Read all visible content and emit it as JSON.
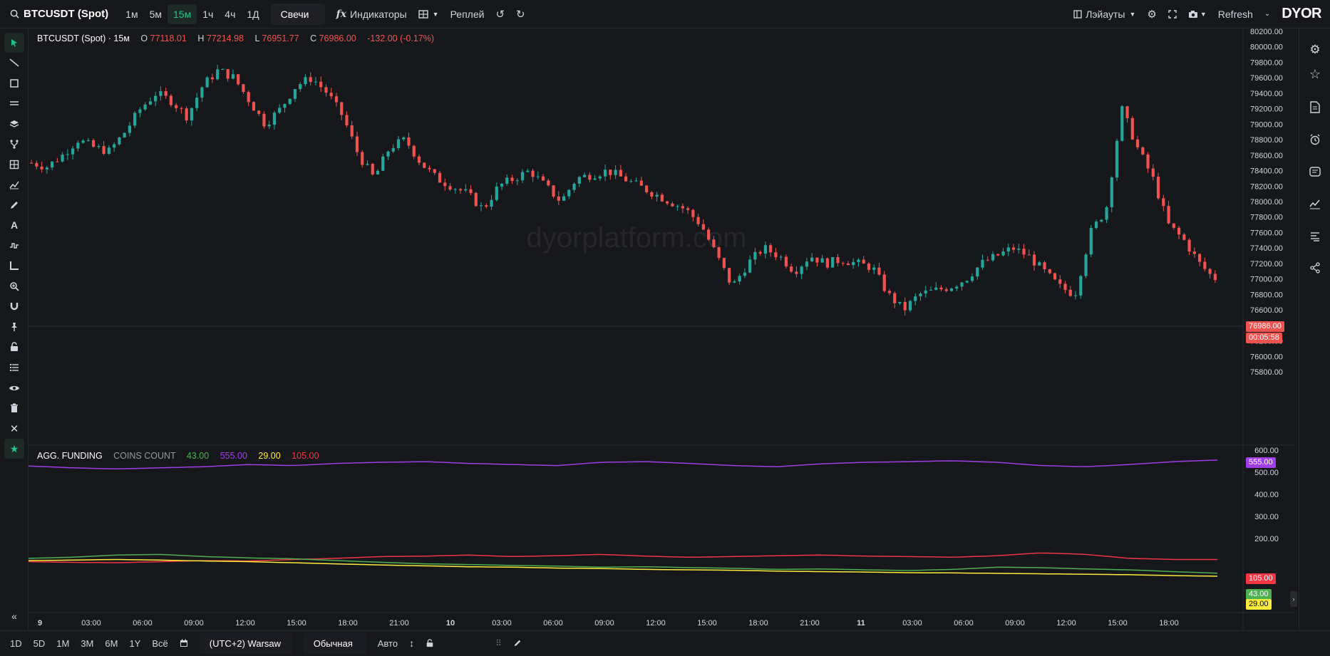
{
  "topbar": {
    "symbol": "BTCUSDT (Spot)",
    "intervals": [
      "1м",
      "5м",
      "15м",
      "1ч",
      "4ч",
      "1Д"
    ],
    "active_interval": "15м",
    "chart_style": "Свечи",
    "indicators_label": "Индикаторы",
    "replay_label": "Реплей",
    "layouts_label": "Лэйауты",
    "refresh_label": "Refresh",
    "logo_text": "DYOR"
  },
  "main_legend": {
    "title": "BTCUSDT (Spot) · 15м",
    "o_label": "O",
    "o_value": "77118.01",
    "h_label": "H",
    "h_value": "77214.98",
    "l_label": "L",
    "l_value": "76951.77",
    "c_label": "C",
    "c_value": "76986.00",
    "change": "-132.00 (-0.17%)"
  },
  "watermark": "dyorplatform.com",
  "indicator_legend": {
    "name": "AGG. FUNDING",
    "sub": "COINS COUNT",
    "v1": "43.00",
    "v2": "555.00",
    "v3": "29.00",
    "v4": "105.00"
  },
  "price_axis": [
    "80200.00",
    "80000.00",
    "79800.00",
    "79600.00",
    "79400.00",
    "79200.00",
    "79000.00",
    "78800.00",
    "78600.00",
    "78400.00",
    "78200.00",
    "78000.00",
    "77800.00",
    "77600.00",
    "77400.00",
    "77200.00",
    "77000.00",
    "76800.00",
    "76600.00",
    "76400.00",
    "76200.00",
    "76000.00",
    "75800.00"
  ],
  "price_tag": "76986.00",
  "countdown_tag": "00:05:58",
  "indicator_axis": [
    "600.00",
    "500.00",
    "400.00",
    "300.00",
    "200.00"
  ],
  "indicator_tags": {
    "purple": "555.00",
    "red": "105.00",
    "green": "43.00",
    "yellow": "29.00"
  },
  "time_axis": [
    "9",
    "03:00",
    "06:00",
    "09:00",
    "12:00",
    "15:00",
    "18:00",
    "21:00",
    "10",
    "03:00",
    "06:00",
    "09:00",
    "12:00",
    "15:00",
    "18:00",
    "21:00",
    "11",
    "03:00",
    "06:00",
    "09:00",
    "12:00",
    "15:00",
    "18:00"
  ],
  "bottombar": {
    "ranges": [
      "1D",
      "5D",
      "1M",
      "3M",
      "6M",
      "1Y",
      "Всё"
    ],
    "timezone": "(UTC+2) Warsaw",
    "scale_mode": "Обычная",
    "auto_label": "Авто"
  },
  "colors": {
    "up": "#26a69a",
    "down": "#ef5350",
    "purple": "#a23ee8",
    "red": "#f23645",
    "green": "#4caf50",
    "yellow": "#ffeb3b",
    "accent": "#22c38e"
  },
  "chart_data": {
    "type": "candlestick",
    "interval": "15m",
    "ylim": [
      75800,
      80200
    ],
    "candles_sampled_closes": [
      78500,
      78450,
      78600,
      78800,
      78700,
      78650,
      78900,
      79200,
      79400,
      79300,
      79100,
      79500,
      79700,
      79600,
      79300,
      79000,
      79200,
      79500,
      79600,
      79400,
      79100,
      78600,
      78300,
      78700,
      78800,
      78500,
      78300,
      78200,
      78100,
      77900,
      78200,
      78300,
      78400,
      78200,
      78000,
      78300,
      78350,
      78400,
      78300,
      78200,
      78100,
      78000,
      77900,
      77700,
      77300,
      76900,
      77200,
      77400,
      77300,
      77100,
      77300,
      77200,
      77250,
      77200,
      77150,
      76800,
      76600,
      76800,
      76850,
      76900,
      77000,
      77200,
      77300,
      77400,
      77300,
      77100,
      76900,
      76800,
      77600,
      77900,
      79200,
      78700,
      78300,
      77700,
      77500,
      77200,
      76986
    ],
    "indicator": {
      "name": "AGG. FUNDING",
      "series": [
        {
          "name": "purple",
          "last": 555
        },
        {
          "name": "red",
          "last": 105
        },
        {
          "name": "green",
          "last": 43
        },
        {
          "name": "yellow",
          "last": 29
        }
      ],
      "ylim": [
        0,
        600
      ]
    }
  }
}
